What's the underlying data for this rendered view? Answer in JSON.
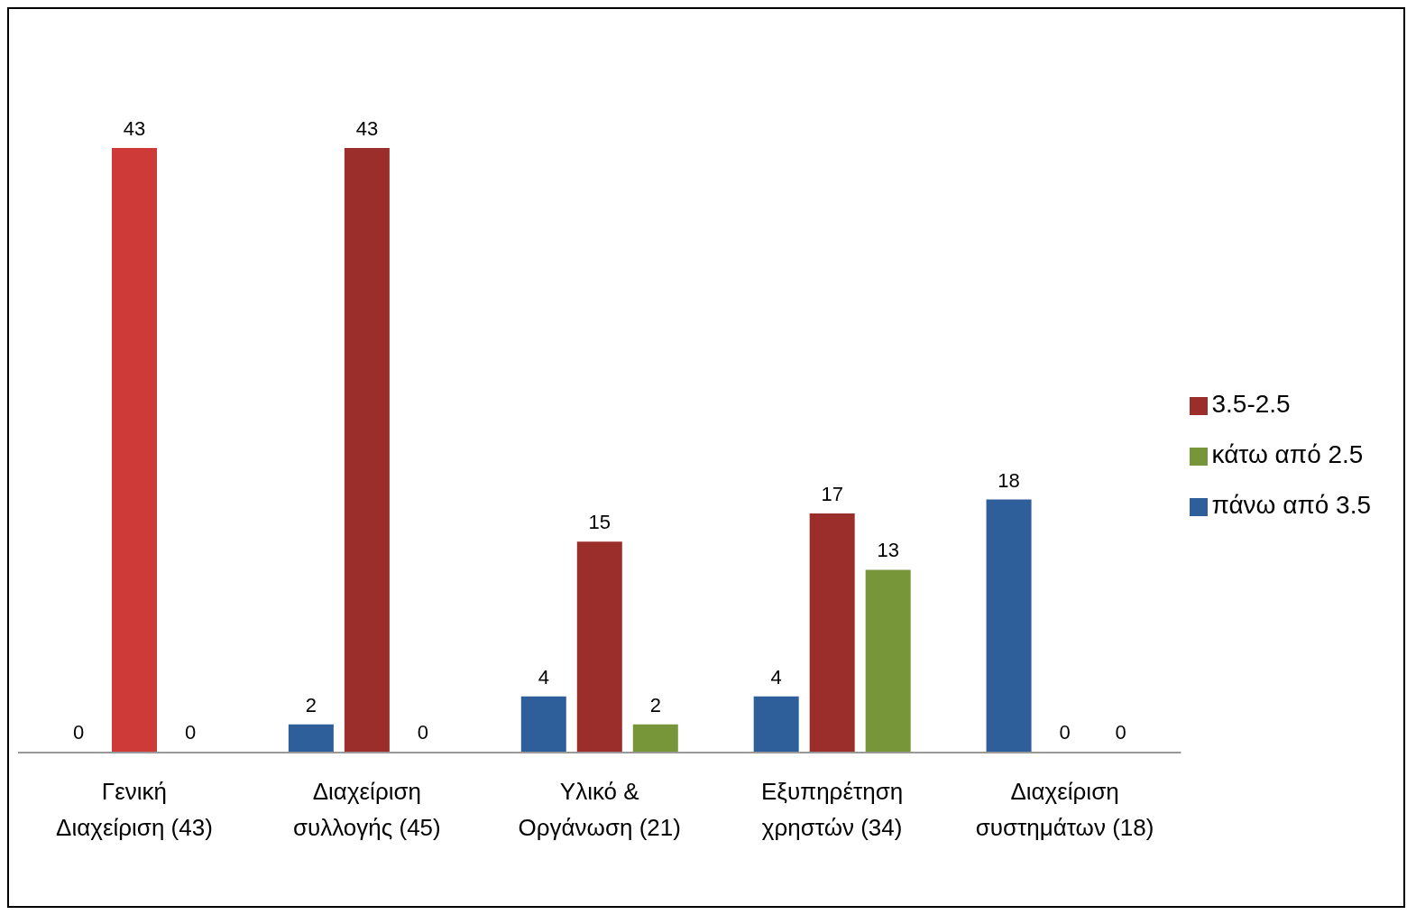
{
  "chart_data": {
    "type": "bar",
    "categories": [
      "Γενική Διαχείριση (43)",
      "Διαχείριση συλλογής (45)",
      "Υλικό & Οργάνωση (21)",
      "Εξυπηρέτηση χρηστών (34)",
      "Διαχείριση συστημάτων (18)"
    ],
    "series": [
      {
        "name": "πάνω από 3.5",
        "color": "#2e5f9a",
        "values": [
          0,
          2,
          4,
          4,
          18
        ]
      },
      {
        "name": "3.5-2.5",
        "color": "#9b2d2a",
        "colors": [
          "#cd3a37",
          "#9b2d2a",
          "#9b2d2a",
          "#9b2d2a",
          "#9b2d2a"
        ],
        "values": [
          43,
          43,
          15,
          17,
          0
        ]
      },
      {
        "name": "κάτω από 2.5",
        "color": "#77963a",
        "values": [
          0,
          0,
          2,
          13,
          0
        ]
      }
    ],
    "data_labels": true,
    "legend": "right",
    "grid": false
  }
}
